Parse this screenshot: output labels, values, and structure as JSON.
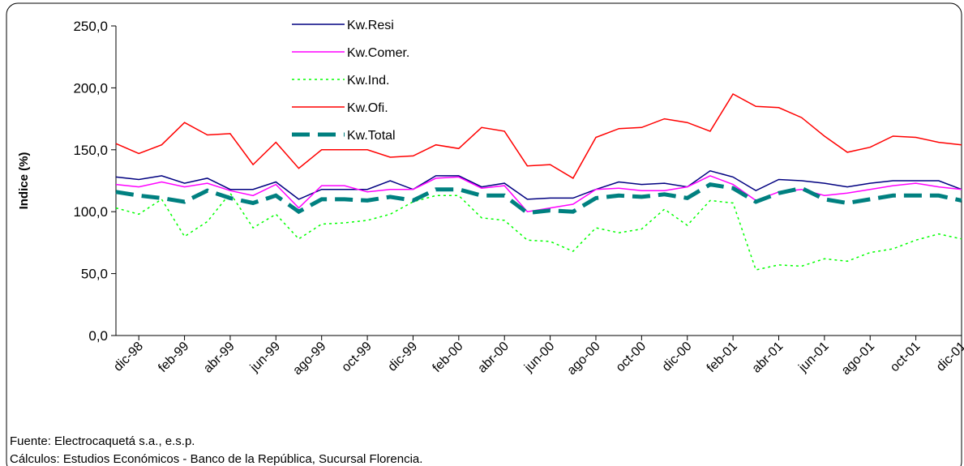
{
  "chart_data": {
    "type": "line",
    "y_label": "Indice (%)",
    "categories": [
      null,
      "dic-98",
      null,
      "feb-99",
      null,
      "abr-99",
      null,
      "jun-99",
      null,
      "ago-99",
      null,
      "oct-99",
      null,
      "dic-99",
      null,
      "feb-00",
      null,
      "abr-00",
      null,
      "jun-00",
      null,
      "ago-00",
      null,
      "oct-00",
      null,
      "dic-00",
      null,
      "feb-01",
      null,
      "abr-01",
      null,
      "jun-01",
      null,
      "ago-01",
      null,
      "oct-01",
      null,
      "dic-01"
    ],
    "ylim": [
      0,
      250
    ],
    "yticks": [
      {
        "value": 0,
        "label": "0,0"
      },
      {
        "value": 50,
        "label": "50,0"
      },
      {
        "value": 100,
        "label": "100,0"
      },
      {
        "value": 150,
        "label": "150,0"
      },
      {
        "value": 200,
        "label": "200,0"
      },
      {
        "value": 250,
        "label": "250,0"
      }
    ],
    "series": [
      {
        "name": "Kw.Resi",
        "color": "#000080",
        "dash": "solid",
        "width": 1.5,
        "values": [
          128,
          126,
          129,
          123,
          127,
          118,
          118,
          124,
          110,
          118,
          118,
          118,
          125,
          118,
          129,
          129,
          120,
          123,
          110,
          111,
          111,
          118,
          124,
          122,
          123,
          120,
          133,
          128,
          117,
          126,
          125,
          123,
          120,
          123,
          125,
          125,
          125,
          118
        ]
      },
      {
        "name": "Kw.Comer.",
        "color": "#ff00ff",
        "dash": "solid",
        "width": 1.5,
        "values": [
          122,
          120,
          124,
          120,
          123,
          117,
          113,
          122,
          103,
          121,
          121,
          116,
          118,
          118,
          127,
          128,
          119,
          121,
          100,
          103,
          106,
          118,
          119,
          117,
          117,
          120,
          129,
          122,
          109,
          116,
          118,
          113,
          115,
          118,
          121,
          123,
          120,
          118
        ]
      },
      {
        "name": "Kw.Ind.",
        "color": "#00ff00",
        "dash": "dotted",
        "width": 1.5,
        "values": [
          103,
          98,
          110,
          80,
          92,
          115,
          87,
          98,
          78,
          90,
          91,
          93,
          98,
          108,
          113,
          113,
          95,
          93,
          77,
          76,
          68,
          87,
          83,
          86,
          102,
          89,
          109,
          107,
          53,
          57,
          56,
          62,
          60,
          67,
          70,
          77,
          82,
          78
        ]
      },
      {
        "name": "Kw.Ofi.",
        "color": "#ff0000",
        "dash": "solid",
        "width": 1.5,
        "values": [
          155,
          147,
          154,
          172,
          162,
          163,
          138,
          156,
          135,
          150,
          150,
          150,
          144,
          145,
          154,
          151,
          168,
          165,
          137,
          138,
          127,
          160,
          167,
          168,
          175,
          172,
          165,
          195,
          185,
          184,
          176,
          161,
          148,
          152,
          161,
          160,
          156,
          154
        ]
      },
      {
        "name": "Kw.Total",
        "color": "#008080",
        "dash": "dashed",
        "width": 5,
        "values": [
          116,
          113,
          111,
          108,
          117,
          111,
          107,
          113,
          100,
          110,
          110,
          109,
          112,
          109,
          118,
          118,
          113,
          113,
          99,
          101,
          100,
          111,
          113,
          112,
          114,
          111,
          122,
          119,
          108,
          115,
          119,
          110,
          107,
          110,
          113,
          113,
          113,
          109
        ]
      }
    ],
    "notes": [
      "Fuente: Electrocaquetá s.a., e.s.p.",
      "Cálculos:  Estudios Económicos - Banco de la República, Sucursal Florencia."
    ]
  }
}
